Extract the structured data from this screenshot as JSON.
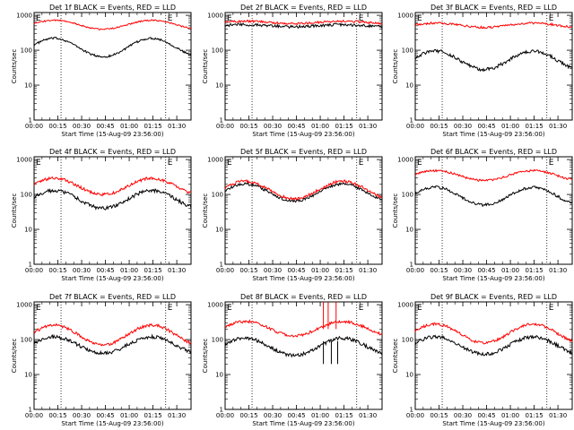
{
  "chart_data": [
    {
      "type": "line",
      "title": "Det 1f BLACK = Events, RED = LLD",
      "xlabel": "Start Time (15-Aug-09 23:56:00)",
      "ylabel": "Counts/sec",
      "yscale": "log",
      "ylim": [
        1,
        1200
      ],
      "xlim": [
        0,
        99
      ],
      "x_ticks": [
        "00:00",
        "00:15",
        "00:30",
        "00:45",
        "01:00",
        "01:15",
        "01:30"
      ],
      "y_ticks": [
        "1",
        "10",
        "100",
        "1000"
      ],
      "markers": [
        17,
        83
      ],
      "flags": [
        "E",
        "E"
      ],
      "series": [
        {
          "name": "Events",
          "color": "#000000",
          "min": 65,
          "max": 220,
          "noise": 0.03
        },
        {
          "name": "LLD",
          "color": "#ff0000",
          "min": 400,
          "max": 720,
          "noise": 0.02
        }
      ]
    },
    {
      "type": "line",
      "title": "Det 2f BLACK = Events, RED = LLD",
      "xlabel": "Start Time (15-Aug-09 23:56:00)",
      "ylabel": "Counts/sec",
      "yscale": "log",
      "ylim": [
        1,
        1200
      ],
      "xlim": [
        0,
        99
      ],
      "x_ticks": [
        "00:00",
        "00:15",
        "00:30",
        "00:45",
        "01:00",
        "01:15",
        "01:30"
      ],
      "y_ticks": [
        "1",
        "10",
        "100",
        "1000"
      ],
      "markers": [
        17,
        83
      ],
      "flags": [
        "E",
        "E"
      ],
      "series": [
        {
          "name": "Events",
          "color": "#000000",
          "min": 470,
          "max": 540,
          "noise": 0.04
        },
        {
          "name": "LLD",
          "color": "#ff0000",
          "min": 580,
          "max": 680,
          "noise": 0.03
        }
      ]
    },
    {
      "type": "line",
      "title": "Det 3f BLACK = Events, RED = LLD",
      "xlabel": "Start Time (15-Aug-09 23:56:00)",
      "ylabel": "Counts/sec",
      "yscale": "log",
      "ylim": [
        1,
        1200
      ],
      "xlim": [
        0,
        99
      ],
      "x_ticks": [
        "00:00",
        "00:15",
        "00:30",
        "00:45",
        "01:00",
        "01:15",
        "01:30"
      ],
      "y_ticks": [
        "1",
        "10",
        "100",
        "1000"
      ],
      "markers": [
        17,
        83
      ],
      "flags": [
        "E",
        "E"
      ],
      "series": [
        {
          "name": "Events",
          "color": "#000000",
          "min": 28,
          "max": 95,
          "noise": 0.05
        },
        {
          "name": "LLD",
          "color": "#ff0000",
          "min": 450,
          "max": 600,
          "noise": 0.03
        }
      ]
    },
    {
      "type": "line",
      "title": "Det 4f BLACK = Events, RED = LLD",
      "xlabel": "Start Time (15-Aug-09 23:56:00)",
      "ylabel": "Counts/sec",
      "yscale": "log",
      "ylim": [
        1,
        1200
      ],
      "xlim": [
        0,
        99
      ],
      "x_ticks": [
        "00:00",
        "00:15",
        "00:30",
        "00:45",
        "01:00",
        "01:15",
        "01:30"
      ],
      "y_ticks": [
        "1",
        "10",
        "100",
        "1000"
      ],
      "markers": [
        17,
        83
      ],
      "flags": [
        "E",
        "E"
      ],
      "series": [
        {
          "name": "Events",
          "color": "#000000",
          "min": 40,
          "max": 130,
          "noise": 0.05
        },
        {
          "name": "LLD",
          "color": "#ff0000",
          "min": 100,
          "max": 290,
          "noise": 0.04
        }
      ]
    },
    {
      "type": "line",
      "title": "Det 5f BLACK = Events, RED = LLD",
      "xlabel": "Start Time (15-Aug-09 23:56:00)",
      "ylabel": "Counts/sec",
      "yscale": "log",
      "ylim": [
        1,
        1200
      ],
      "xlim": [
        0,
        99
      ],
      "x_ticks": [
        "00:00",
        "00:15",
        "00:30",
        "00:45",
        "01:00",
        "01:15",
        "01:30"
      ],
      "y_ticks": [
        "1",
        "10",
        "100",
        "1000"
      ],
      "markers": [
        17,
        83
      ],
      "flags": [
        "E",
        "E"
      ],
      "series": [
        {
          "name": "Events",
          "color": "#000000",
          "min": 65,
          "max": 200,
          "noise": 0.04
        },
        {
          "name": "LLD",
          "color": "#ff0000",
          "min": 75,
          "max": 240,
          "noise": 0.04
        }
      ]
    },
    {
      "type": "line",
      "title": "Det 6f BLACK = Events, RED = LLD",
      "xlabel": "Start Time (15-Aug-09 23:56:00)",
      "ylabel": "Counts/sec",
      "yscale": "log",
      "ylim": [
        1,
        1200
      ],
      "xlim": [
        0,
        99
      ],
      "x_ticks": [
        "00:00",
        "00:15",
        "00:30",
        "00:45",
        "01:00",
        "01:15",
        "01:30"
      ],
      "y_ticks": [
        "1",
        "10",
        "100",
        "1000"
      ],
      "markers": [
        17,
        83
      ],
      "flags": [
        "E",
        "E"
      ],
      "series": [
        {
          "name": "Events",
          "color": "#000000",
          "min": 50,
          "max": 160,
          "noise": 0.04
        },
        {
          "name": "LLD",
          "color": "#ff0000",
          "min": 250,
          "max": 480,
          "noise": 0.03
        }
      ]
    },
    {
      "type": "line",
      "title": "Det 7f BLACK = Events, RED = LLD",
      "xlabel": "Start Time (15-Aug-09 23:56:00)",
      "ylabel": "Counts/sec",
      "yscale": "log",
      "ylim": [
        1,
        1200
      ],
      "xlim": [
        0,
        99
      ],
      "x_ticks": [
        "00:00",
        "00:15",
        "00:30",
        "00:45",
        "01:00",
        "01:15",
        "01:30"
      ],
      "y_ticks": [
        "1",
        "10",
        "100",
        "1000"
      ],
      "markers": [
        17,
        83
      ],
      "flags": [
        "E",
        "E"
      ],
      "series": [
        {
          "name": "Events",
          "color": "#000000",
          "min": 40,
          "max": 120,
          "noise": 0.05
        },
        {
          "name": "LLD",
          "color": "#ff0000",
          "min": 70,
          "max": 260,
          "noise": 0.04
        }
      ]
    },
    {
      "type": "line",
      "title": "Det 8f BLACK = Events, RED = LLD",
      "xlabel": "Start Time (15-Aug-09 23:56:00)",
      "ylabel": "Counts/sec",
      "yscale": "log",
      "ylim": [
        1,
        1200
      ],
      "xlim": [
        0,
        99
      ],
      "x_ticks": [
        "00:00",
        "00:15",
        "00:30",
        "00:45",
        "01:00",
        "01:15",
        "01:30"
      ],
      "y_ticks": [
        "1",
        "10",
        "100",
        "1000"
      ],
      "markers": [
        17,
        83
      ],
      "flags": [
        "E",
        "E"
      ],
      "series": [
        {
          "name": "Events",
          "color": "#000000",
          "min": 35,
          "max": 110,
          "noise": 0.05
        },
        {
          "name": "LLD",
          "color": "#ff0000",
          "min": 130,
          "max": 330,
          "noise": 0.04
        }
      ],
      "spikes": [
        {
          "x": 62,
          "color": "#ff0000",
          "from": 200,
          "to": 1200
        },
        {
          "x": 65,
          "color": "#ff0000",
          "from": 200,
          "to": 1200
        },
        {
          "x": 70,
          "color": "#ff0000",
          "from": 200,
          "to": 1200
        },
        {
          "x": 62,
          "color": "#000000",
          "from": 20,
          "to": 90
        },
        {
          "x": 67,
          "color": "#000000",
          "from": 20,
          "to": 90
        },
        {
          "x": 71,
          "color": "#000000",
          "from": 20,
          "to": 90
        }
      ]
    },
    {
      "type": "line",
      "title": "Det 9f BLACK = Events, RED = LLD",
      "xlabel": "Start Time (15-Aug-09 23:56:00)",
      "ylabel": "Counts/sec",
      "yscale": "log",
      "ylim": [
        1,
        1200
      ],
      "xlim": [
        0,
        99
      ],
      "x_ticks": [
        "00:00",
        "00:15",
        "00:30",
        "00:45",
        "01:00",
        "01:15",
        "01:30"
      ],
      "y_ticks": [
        "1",
        "10",
        "100",
        "1000"
      ],
      "markers": [
        17,
        83
      ],
      "flags": [
        "E",
        "E"
      ],
      "series": [
        {
          "name": "Events",
          "color": "#000000",
          "min": 38,
          "max": 120,
          "noise": 0.05
        },
        {
          "name": "LLD",
          "color": "#ff0000",
          "min": 80,
          "max": 280,
          "noise": 0.04
        }
      ]
    }
  ]
}
